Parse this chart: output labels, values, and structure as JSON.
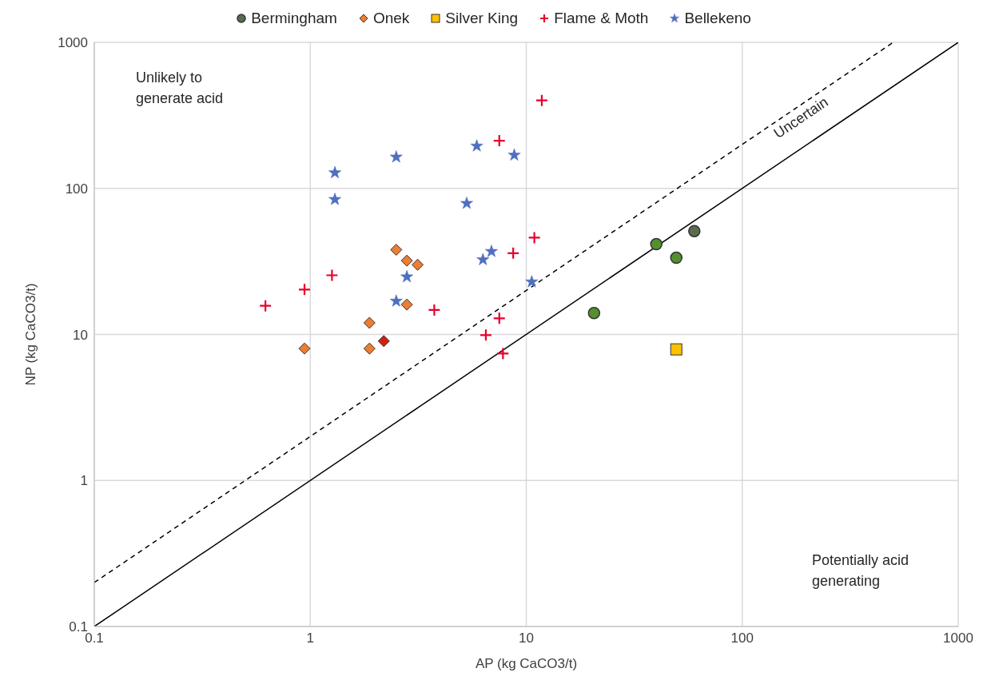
{
  "chart_data": {
    "type": "scatter",
    "xlabel": "AP (kg CaCO3/t)",
    "ylabel": "NP (kg CaCO3/t)",
    "log": "xy",
    "xlim": [
      0.1,
      1000
    ],
    "ylim": [
      0.1,
      1000
    ],
    "xticks": [
      0.1,
      1,
      10,
      100,
      1000
    ],
    "yticks": [
      0.1,
      1,
      10,
      100,
      1000
    ],
    "grid": true,
    "legend": "top",
    "annotations": [
      "Unlikely to generate acid",
      "Uncertain",
      "Potentially acid generating"
    ],
    "series": [
      {
        "name": "Bermingham",
        "color": "#5b6b4f",
        "marker": "circle",
        "x": [
          60,
          40,
          49.5,
          20.6
        ],
        "values": [
          51,
          41.5,
          33.5,
          14
        ],
        "colors": [
          "#5b6b4f",
          "#55902f",
          "#55902f",
          "#55902f"
        ]
      },
      {
        "name": "Onek",
        "color": "#ed7d31",
        "marker": "diamond",
        "x": [
          2.5,
          2.8,
          3.14,
          2.8,
          1.88,
          1.88,
          0.94,
          2.19
        ],
        "values": [
          38,
          32,
          30,
          16,
          12,
          8,
          8,
          9
        ],
        "colors": [
          "#ed7d31",
          "#ed7d31",
          "#ed7d31",
          "#ed7d31",
          "#ed7d31",
          "#ed7d31",
          "#ed7d31",
          "#d2200f"
        ]
      },
      {
        "name": "Silver King",
        "color": "#ffc000",
        "marker": "square",
        "x": [
          49.5
        ],
        "values": [
          7.9
        ]
      },
      {
        "name": "Flame & Moth",
        "color": "#e8002a",
        "marker": "cross",
        "x": [
          11.8,
          7.5,
          10.9,
          8.7,
          1.26,
          0.94,
          0.62,
          3.75,
          7.5,
          6.5,
          7.8
        ],
        "values": [
          400,
          212,
          46,
          36,
          25.4,
          20.3,
          15.7,
          14.7,
          12.9,
          9.9,
          7.4
        ]
      },
      {
        "name": "Bellekeno",
        "color": "#4f6fbf",
        "marker": "star",
        "x": [
          1.3,
          1.3,
          2.5,
          5.9,
          8.8,
          5.3,
          6.9,
          6.3,
          2.8,
          2.5,
          10.6
        ],
        "values": [
          128,
          84,
          164,
          195,
          169,
          79,
          37,
          32.5,
          24.8,
          16.9,
          22.9
        ]
      },
      {
        "type": "line",
        "color": "#000000",
        "line_style": "solid",
        "marker": "none",
        "x": [
          0.1,
          1000
        ],
        "values": [
          0.1,
          1000
        ]
      },
      {
        "type": "line",
        "color": "#000000",
        "line_style": "dashed",
        "marker": "none",
        "x": [
          0.1,
          500
        ],
        "values": [
          0.2,
          1000
        ]
      }
    ]
  }
}
